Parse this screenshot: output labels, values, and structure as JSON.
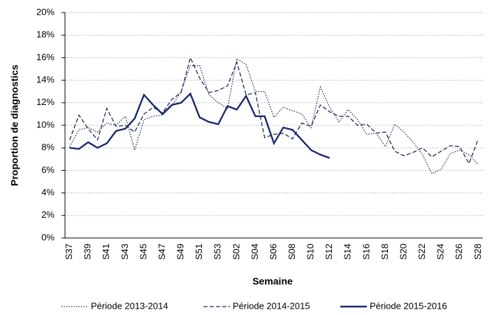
{
  "chart_data": {
    "type": "line",
    "x_label": "Semaine",
    "y_label": "Proportion de diagnostics",
    "categories": [
      "S37",
      null,
      "S39",
      null,
      "S41",
      null,
      "S43",
      null,
      "S45",
      null,
      "S47",
      null,
      "S49",
      null,
      "S51",
      null,
      "S53",
      null,
      "S02",
      null,
      "S04",
      null,
      "S06",
      null,
      "S08",
      null,
      "S10",
      null,
      "S12",
      null,
      "S14",
      null,
      "S16",
      null,
      "S18",
      null,
      "S20",
      null,
      "S22",
      null,
      "S24",
      null,
      "S26",
      null,
      "S28"
    ],
    "series": [
      {
        "name": "Période 2013-2014",
        "color": "#1f2a5c",
        "style": "dotted",
        "values": [
          8.1,
          9.6,
          9.8,
          9.4,
          10.2,
          10.0,
          10.8,
          7.8,
          10.5,
          10.8,
          10.9,
          11.7,
          13.0,
          15.3,
          15.3,
          12.7,
          12.0,
          11.5,
          15.9,
          15.4,
          13.0,
          13.0,
          10.7,
          11.6,
          11.3,
          11.0,
          9.8,
          13.4,
          11.6,
          10.3,
          11.4,
          10.5,
          9.2,
          9.3,
          8.1,
          10.1,
          9.4,
          8.5,
          7.4,
          5.7,
          6.1,
          7.5,
          7.8,
          7.4,
          6.5
        ]
      },
      {
        "name": "Période 2014-2015",
        "color": "#1f2a5c",
        "style": "dashed",
        "values": [
          8.7,
          10.9,
          9.7,
          8.7,
          11.5,
          9.9,
          10.0,
          9.4,
          11.0,
          11.6,
          11.1,
          12.3,
          12.9,
          16.0,
          14.2,
          12.9,
          13.1,
          13.5,
          15.6,
          12.7,
          12.9,
          8.9,
          9.2,
          9.3,
          8.8,
          10.2,
          9.9,
          11.8,
          11.2,
          10.8,
          10.8,
          10.0,
          10.1,
          9.3,
          9.4,
          7.7,
          7.3,
          7.6,
          8.0,
          7.2,
          7.7,
          8.2,
          8.1,
          6.6,
          8.8
        ]
      },
      {
        "name": "Période 2015-2016",
        "color": "#1a2a6c",
        "style": "solid",
        "values": [
          8.0,
          7.9,
          8.5,
          8.0,
          8.4,
          9.5,
          9.7,
          10.6,
          12.7,
          11.8,
          11.0,
          11.8,
          12.0,
          12.8,
          10.7,
          10.3,
          10.1,
          11.7,
          11.4,
          12.6,
          10.8,
          10.8,
          8.4,
          9.8,
          9.6,
          8.7,
          7.8,
          7.4,
          7.1,
          null,
          null,
          null,
          null,
          null,
          null,
          null,
          null,
          null,
          null,
          null,
          null,
          null,
          null,
          null,
          null
        ]
      }
    ],
    "ylim": [
      0,
      20
    ],
    "yticks": [
      {
        "value": 0,
        "label": "0%"
      },
      {
        "value": 2,
        "label": "2%"
      },
      {
        "value": 4,
        "label": "4%"
      },
      {
        "value": 6,
        "label": "6%"
      },
      {
        "value": 8,
        "label": "8%"
      },
      {
        "value": 10,
        "label": "10%"
      },
      {
        "value": 12,
        "label": "12%"
      },
      {
        "value": 14,
        "label": "14%"
      },
      {
        "value": 16,
        "label": "16%"
      },
      {
        "value": 18,
        "label": "18%"
      },
      {
        "value": 20,
        "label": "20%"
      }
    ],
    "grid": true
  }
}
